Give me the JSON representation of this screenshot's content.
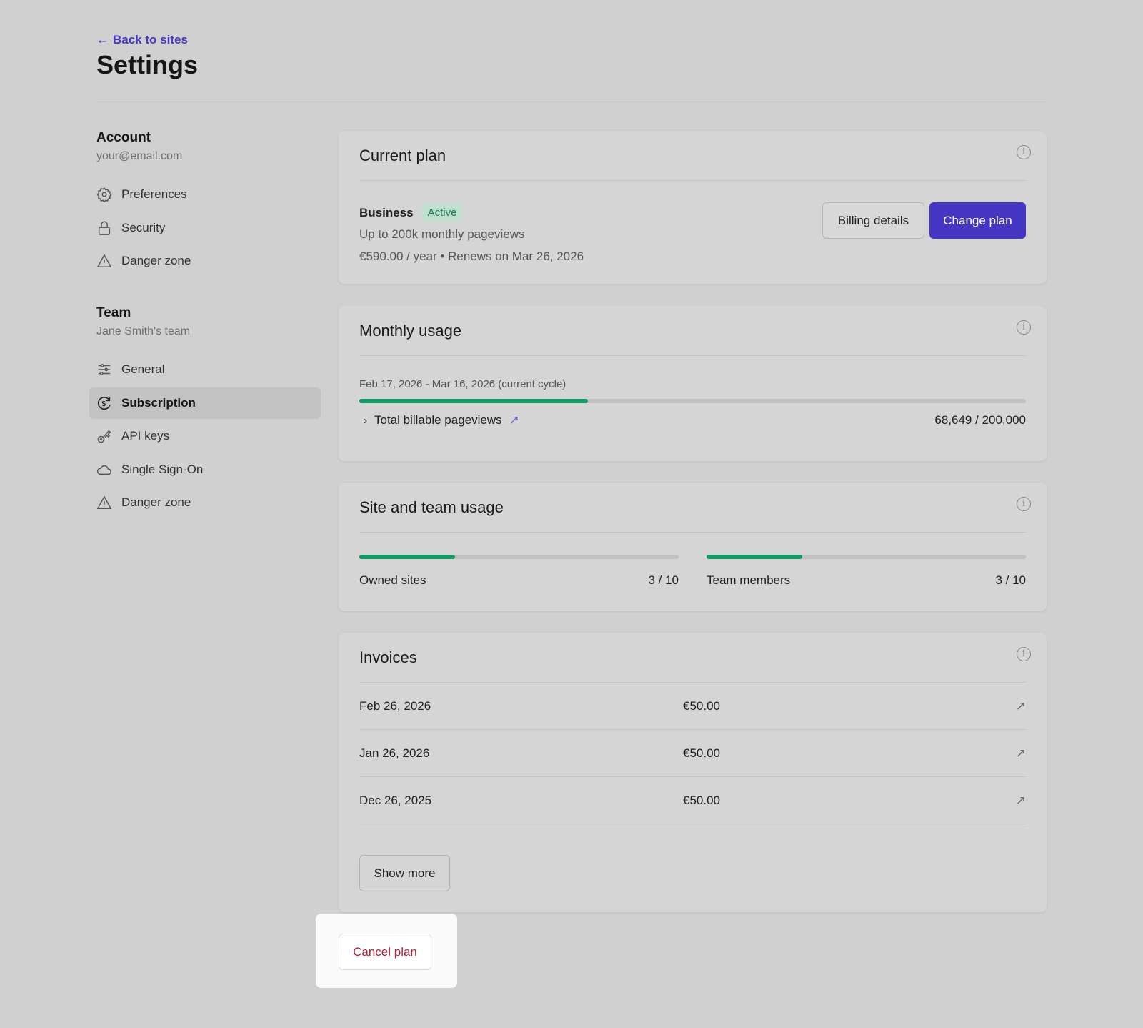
{
  "header": {
    "back_label": "Back to sites",
    "title": "Settings"
  },
  "sidebar": {
    "account": {
      "title": "Account",
      "subtitle": "your@email.com",
      "items": [
        {
          "label": "Preferences",
          "icon": "gear-icon"
        },
        {
          "label": "Security",
          "icon": "lock-icon"
        },
        {
          "label": "Danger zone",
          "icon": "warning-icon"
        }
      ]
    },
    "team": {
      "title": "Team",
      "subtitle": "Jane Smith's team",
      "items": [
        {
          "label": "General",
          "icon": "sliders-icon"
        },
        {
          "label": "Subscription",
          "icon": "dollar-cycle-icon",
          "active": true
        },
        {
          "label": "API keys",
          "icon": "key-icon"
        },
        {
          "label": "Single Sign-On",
          "icon": "cloud-icon"
        },
        {
          "label": "Danger zone",
          "icon": "warning-icon"
        }
      ]
    }
  },
  "current_plan": {
    "title": "Current plan",
    "plan_name": "Business",
    "status": "Active",
    "description": "Up to 200k monthly pageviews",
    "price_line": "€590.00 / year • Renews on Mar 26, 2026",
    "billing_button": "Billing details",
    "change_button": "Change plan"
  },
  "monthly_usage": {
    "title": "Monthly usage",
    "cycle": "Feb 17, 2026 - Mar 16, 2026 (current cycle)",
    "label": "Total billable pageviews",
    "value": "68,649 / 200,000",
    "progress": 0.343
  },
  "site_team_usage": {
    "title": "Site and team usage",
    "owned_sites": {
      "label": "Owned sites",
      "value": "3 / 10",
      "progress": 0.3
    },
    "team_members": {
      "label": "Team members",
      "value": "3 / 10",
      "progress": 0.3
    }
  },
  "invoices": {
    "title": "Invoices",
    "rows": [
      {
        "date": "Feb 26, 2026",
        "amount": "€50.00"
      },
      {
        "date": "Jan 26, 2026",
        "amount": "€50.00"
      },
      {
        "date": "Dec 26, 2025",
        "amount": "€50.00"
      }
    ],
    "show_more": "Show more"
  },
  "cancel_button": "Cancel plan",
  "colors": {
    "accent": "#4536c4",
    "progress": "#139a62",
    "danger": "#b0213a",
    "badge_bg": "#bfe0cf"
  }
}
